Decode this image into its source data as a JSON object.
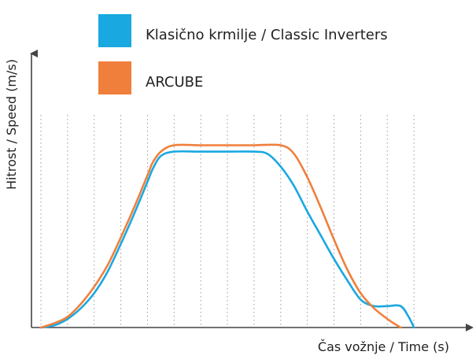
{
  "chart_data": {
    "type": "line",
    "title": "",
    "xlabel": "Čas vožnje / Time (s)",
    "ylabel": "Hitrost / Speed (m/s)",
    "xlim": [
      0,
      15
    ],
    "ylim": [
      0,
      10.5
    ],
    "x_ticks_numbered": false,
    "y_ticks_numbered": false,
    "vertical_gridlines": [
      0,
      1,
      2,
      3,
      4,
      5,
      6,
      7,
      8,
      9,
      10,
      11,
      12,
      13,
      14
    ],
    "grid": "dotted vertical",
    "legend_placement": "top-center",
    "series": [
      {
        "name": "Klasično krmilje / Classic Inverters",
        "color": "#1aa8e0",
        "x": [
          0,
          0.5,
          1,
          1.5,
          2,
          2.5,
          3,
          3.5,
          4,
          4.2,
          4.5,
          5,
          6,
          7,
          8,
          8.5,
          9,
          9.5,
          10,
          10.5,
          11,
          11.5,
          12,
          12.5,
          13,
          13.5,
          13.8,
          14
        ],
        "y": [
          0,
          0.1,
          0.4,
          0.9,
          1.6,
          2.6,
          3.9,
          5.3,
          6.8,
          7.4,
          8.0,
          8.2,
          8.2,
          8.2,
          8.2,
          8.1,
          7.5,
          6.6,
          5.4,
          4.3,
          3.2,
          2.2,
          1.3,
          1.0,
          1.0,
          1.0,
          0.5,
          0
        ]
      },
      {
        "name": "ARCUBE",
        "color": "#f07f3c",
        "x": [
          0,
          0.5,
          1,
          1.5,
          2,
          2.5,
          3,
          3.5,
          4,
          4.2,
          4.5,
          5,
          6,
          7,
          8,
          9,
          9.5,
          10,
          10.5,
          11,
          11.5,
          12,
          12.5,
          13,
          13.3,
          13.5
        ],
        "y": [
          0,
          0.2,
          0.5,
          1.1,
          1.9,
          2.9,
          4.2,
          5.6,
          7.1,
          7.7,
          8.2,
          8.5,
          8.5,
          8.5,
          8.5,
          8.5,
          8.1,
          7.0,
          5.6,
          4.1,
          2.7,
          1.6,
          0.9,
          0.4,
          0.15,
          0
        ]
      }
    ]
  }
}
